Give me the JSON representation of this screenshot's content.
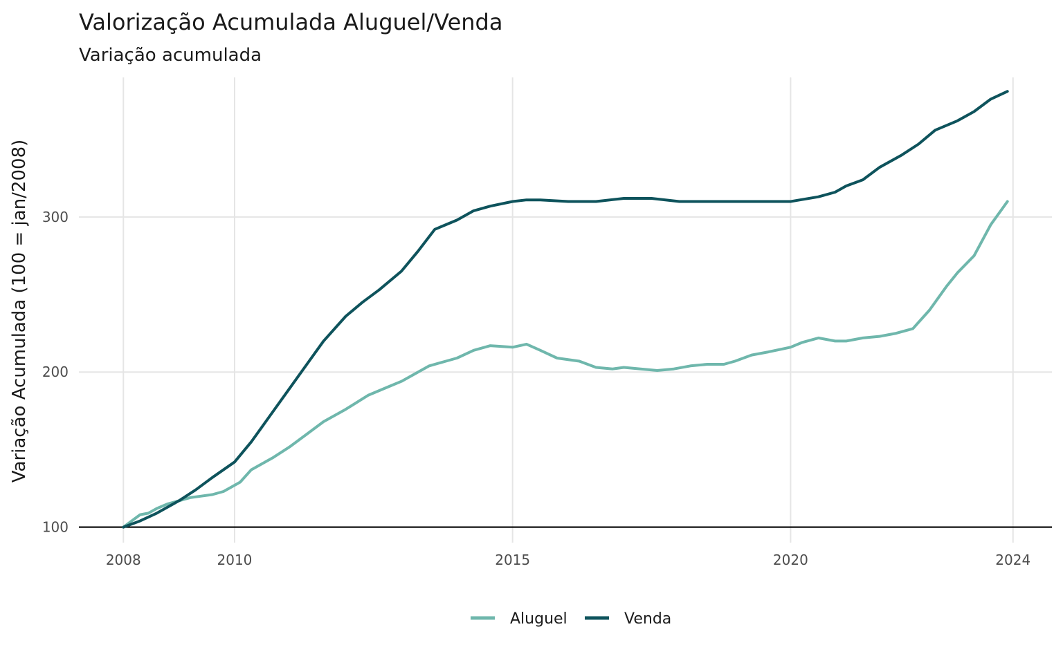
{
  "chart_data": {
    "type": "line",
    "title": "Valorização Acumulada Aluguel/Venda",
    "subtitle": "Variação acumulada",
    "xlabel": "",
    "ylabel": "Variação Acumulada (100 = jan/2008)",
    "xlim": [
      2007.2,
      2024.7
    ],
    "ylim": [
      90,
      390
    ],
    "x_ticks": [
      2008,
      2010,
      2015,
      2020,
      2024
    ],
    "x_tick_labels": [
      "2008",
      "2010",
      "2015",
      "2020",
      "2024"
    ],
    "y_ticks": [
      100,
      200,
      300
    ],
    "y_tick_labels": [
      "100",
      "200",
      "300"
    ],
    "reference_line": 100,
    "grid": true,
    "legend_position": "bottom",
    "series": [
      {
        "name": "Aluguel",
        "color": "#6FB7AC",
        "x": [
          2008.0,
          2008.15,
          2008.3,
          2008.45,
          2008.6,
          2008.8,
          2009.0,
          2009.2,
          2009.4,
          2009.6,
          2009.8,
          2010.0,
          2010.1,
          2010.3,
          2010.5,
          2010.7,
          2011.0,
          2011.3,
          2011.6,
          2012.0,
          2012.4,
          2012.8,
          2013.0,
          2013.2,
          2013.5,
          2013.8,
          2014.0,
          2014.3,
          2014.6,
          2015.0,
          2015.25,
          2015.5,
          2015.8,
          2016.2,
          2016.5,
          2016.8,
          2017.0,
          2017.3,
          2017.6,
          2017.9,
          2018.2,
          2018.5,
          2018.8,
          2019.0,
          2019.3,
          2019.6,
          2020.0,
          2020.2,
          2020.5,
          2020.8,
          2021.0,
          2021.3,
          2021.6,
          2021.9,
          2022.2,
          2022.5,
          2022.8,
          2023.0,
          2023.3,
          2023.6,
          2023.9
        ],
        "values": [
          100,
          104,
          108,
          109,
          112,
          115,
          117,
          119,
          120,
          121,
          123,
          127,
          129,
          137,
          141,
          145,
          152,
          160,
          168,
          176,
          185,
          191,
          194,
          198,
          204,
          207,
          209,
          214,
          217,
          216,
          218,
          214,
          209,
          207,
          203,
          202,
          203,
          202,
          201,
          202,
          204,
          205,
          205,
          207,
          211,
          213,
          216,
          219,
          222,
          220,
          220,
          222,
          223,
          225,
          228,
          240,
          255,
          264,
          275,
          295,
          310
        ]
      },
      {
        "name": "Venda",
        "color": "#0E535C",
        "x": [
          2008.0,
          2008.3,
          2008.6,
          2009.0,
          2009.3,
          2009.6,
          2010.0,
          2010.3,
          2010.6,
          2011.0,
          2011.3,
          2011.6,
          2012.0,
          2012.3,
          2012.6,
          2013.0,
          2013.3,
          2013.6,
          2014.0,
          2014.3,
          2014.6,
          2015.0,
          2015.25,
          2015.5,
          2016.0,
          2016.5,
          2017.0,
          2017.5,
          2018.0,
          2018.5,
          2019.0,
          2019.5,
          2020.0,
          2020.5,
          2020.8,
          2021.0,
          2021.3,
          2021.6,
          2022.0,
          2022.3,
          2022.6,
          2023.0,
          2023.3,
          2023.6,
          2023.9
        ],
        "values": [
          100,
          104,
          109,
          117,
          124,
          132,
          142,
          155,
          170,
          190,
          205,
          220,
          236,
          245,
          253,
          265,
          278,
          292,
          298,
          304,
          307,
          310,
          311,
          311,
          310,
          310,
          312,
          312,
          310,
          310,
          310,
          310,
          310,
          313,
          316,
          320,
          324,
          332,
          340,
          347,
          356,
          362,
          368,
          376,
          381
        ]
      }
    ]
  }
}
